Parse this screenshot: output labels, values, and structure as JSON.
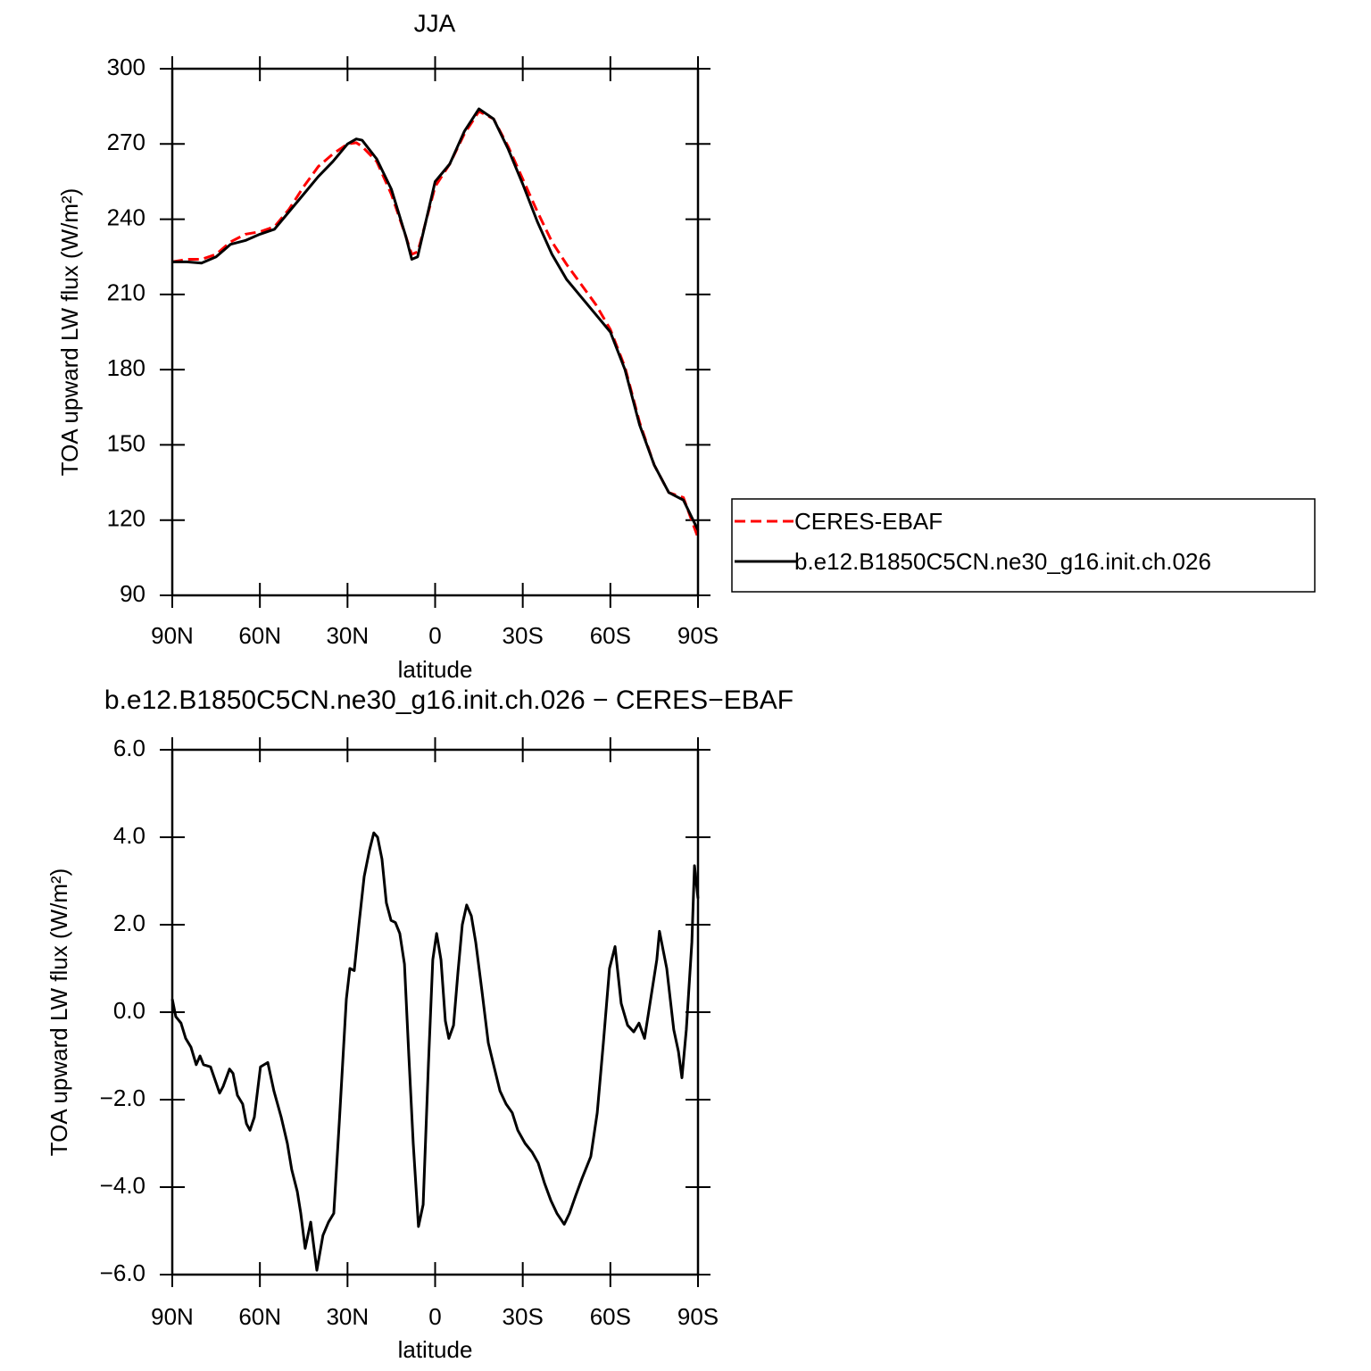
{
  "chart_data": [
    {
      "type": "line",
      "title": "JJA",
      "xlabel": "latitude",
      "ylabel": "TOA upward LW flux (W/m²)",
      "xlim": [
        90,
        -90
      ],
      "xticks": [
        {
          "value": 90,
          "label": "90N"
        },
        {
          "value": 60,
          "label": "60N"
        },
        {
          "value": 30,
          "label": "30N"
        },
        0,
        {
          "value": -30,
          "label": "30S"
        },
        {
          "value": -60,
          "label": "60S"
        },
        {
          "value": -90,
          "label": "90S"
        }
      ],
      "ylim": [
        90,
        300
      ],
      "yticks": [
        90,
        120,
        150,
        180,
        210,
        240,
        270,
        300
      ],
      "legend": "right",
      "x": [
        90,
        85,
        80,
        75,
        70,
        65,
        60,
        55,
        50,
        45,
        40,
        35,
        30,
        27,
        25,
        20,
        15,
        10,
        8,
        6,
        5,
        0,
        -5,
        -10,
        -15,
        -20,
        -25,
        -30,
        -35,
        -40,
        -45,
        -50,
        -55,
        -60,
        -65,
        -70,
        -75,
        -80,
        -85,
        -90
      ],
      "series": [
        {
          "name": "CERES-EBAF",
          "color": "#ff0000",
          "dashed": true,
          "values": [
            223,
            224,
            224,
            226,
            231,
            234,
            235,
            237,
            244,
            253,
            261,
            266,
            270,
            270.5,
            269,
            263,
            250,
            233,
            226,
            227,
            231,
            253,
            262,
            274,
            283,
            280,
            269,
            256,
            243,
            231,
            222,
            214,
            206,
            196,
            181,
            159,
            142,
            131,
            129,
            113
          ]
        },
        {
          "name": "b.e12.B1850C5CN.ne30_g16.init.ch.026",
          "color": "#000000",
          "dashed": false,
          "values": [
            223,
            223,
            222.5,
            225,
            230,
            231.5,
            234,
            236,
            243,
            250,
            257,
            263,
            270,
            272,
            271.5,
            264,
            252,
            233,
            224,
            225,
            230,
            255,
            262,
            275,
            284,
            280,
            268,
            254,
            239,
            226,
            216,
            209,
            202,
            195,
            180,
            158,
            142,
            131,
            128,
            116
          ]
        }
      ]
    },
    {
      "type": "line",
      "title": "b.e12.B1850C5CN.ne30_g16.init.ch.026 − CERES−EBAF",
      "xlabel": "latitude",
      "ylabel": "TOA upward LW flux (W/m²)",
      "xlim": [
        90,
        -90
      ],
      "xticks": [
        {
          "value": 90,
          "label": "90N"
        },
        {
          "value": 60,
          "label": "60N"
        },
        {
          "value": 30,
          "label": "30N"
        },
        0,
        {
          "value": -30,
          "label": "30S"
        },
        {
          "value": -60,
          "label": "60S"
        },
        {
          "value": -90,
          "label": "90S"
        }
      ],
      "ylim": [
        -6,
        6
      ],
      "yticks": [
        {
          "value": -6,
          "label": "−6.0"
        },
        {
          "value": -4,
          "label": "−4.0"
        },
        {
          "value": -2,
          "label": "−2.0"
        },
        {
          "value": 0,
          "label": "0.0"
        },
        {
          "value": 2,
          "label": "2.0"
        },
        {
          "value": 4,
          "label": "4.0"
        },
        {
          "value": 6,
          "label": "6.0"
        }
      ],
      "x": [
        90,
        88.8,
        87,
        85.4,
        83.6,
        81.8,
        80.5,
        79.3,
        76.9,
        73.8,
        72.6,
        70.4,
        69.2,
        67.7,
        65.9,
        64.6,
        63.4,
        61.9,
        59.8,
        57.3,
        55.2,
        52.7,
        50.6,
        49.1,
        47.2,
        46,
        44.5,
        42.6,
        40.5,
        38.4,
        36.5,
        34.7,
        32.8,
        30.4,
        29.2,
        27.7,
        26.1,
        24.3,
        22.5,
        21,
        19.7,
        18.2,
        16.7,
        15.1,
        13.6,
        12.1,
        10.5,
        9,
        7.5,
        5.7,
        4.1,
        2.3,
        0.8,
        -0.5,
        -2,
        -3.5,
        -4.7,
        -6.3,
        -7.8,
        -9.3,
        -10.8,
        -12.4,
        -13.9,
        -16,
        -18.2,
        -20,
        -22.2,
        -24.3,
        -26.4,
        -28.3,
        -30.8,
        -33.2,
        -35.3,
        -37.4,
        -39.6,
        -41.7,
        -44.2,
        -46,
        -48.1,
        -50.3,
        -53.3,
        -55.5,
        -57.6,
        -59.7,
        -61.6,
        -63.7,
        -65.9,
        -68,
        -69.8,
        -71.7,
        -73.8,
        -75.9,
        -76.8,
        -79.3,
        -81.7,
        -83.3,
        -84.5,
        -86,
        -87.9,
        -88.8,
        -90
      ],
      "color": "#000000",
      "values": [
        0.3,
        -0.1,
        -0.25,
        -0.6,
        -0.8,
        -1.2,
        -1,
        -1.2,
        -1.25,
        -1.85,
        -1.7,
        -1.3,
        -1.4,
        -1.9,
        -2.1,
        -2.55,
        -2.7,
        -2.4,
        -1.25,
        -1.15,
        -1.8,
        -2.4,
        -3,
        -3.6,
        -4.1,
        -4.6,
        -5.4,
        -4.8,
        -5.9,
        -5.1,
        -4.8,
        -4.6,
        -2.5,
        0.3,
        1,
        0.95,
        2,
        3.1,
        3.7,
        4.1,
        4,
        3.5,
        2.5,
        2.1,
        2.05,
        1.8,
        1.1,
        -1,
        -3,
        -4.9,
        -4.4,
        -1.2,
        1.2,
        1.8,
        1.2,
        -0.2,
        -0.6,
        -0.3,
        0.9,
        2,
        2.45,
        2.2,
        1.6,
        0.5,
        -0.7,
        -1.2,
        -1.8,
        -2.1,
        -2.3,
        -2.7,
        -3,
        -3.2,
        -3.45,
        -3.9,
        -4.3,
        -4.6,
        -4.85,
        -4.6,
        -4.2,
        -3.8,
        -3.3,
        -2.3,
        -0.7,
        1,
        1.5,
        0.2,
        -0.3,
        -0.45,
        -0.25,
        -0.6,
        0.3,
        1.2,
        1.85,
        1,
        -0.4,
        -0.9,
        -1.5,
        -0.4,
        1.6,
        3.35,
        2.6
      ]
    }
  ]
}
